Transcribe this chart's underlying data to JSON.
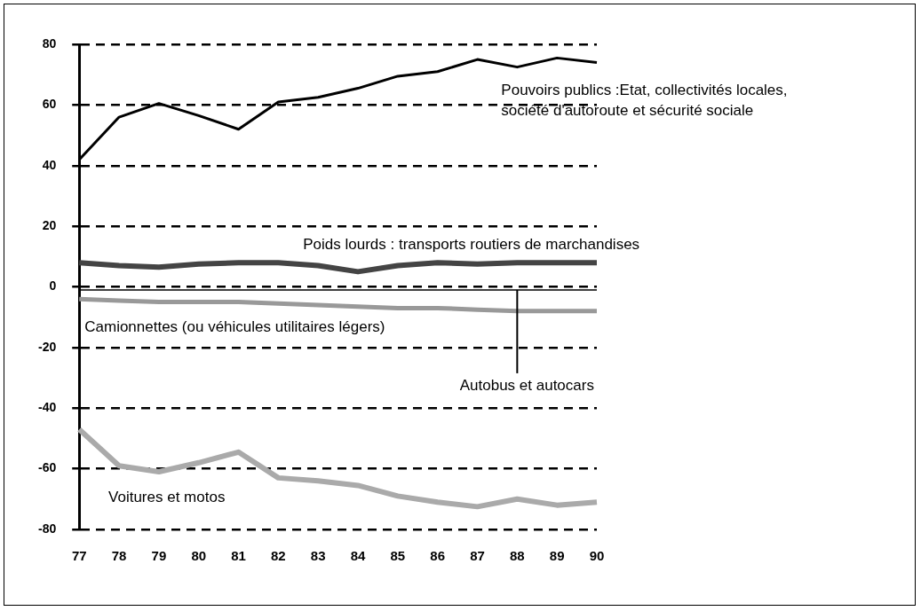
{
  "chart_data": {
    "type": "line",
    "categories": [
      "77",
      "78",
      "79",
      "80",
      "81",
      "82",
      "83",
      "84",
      "85",
      "86",
      "87",
      "88",
      "89",
      "90"
    ],
    "series": [
      {
        "name": "Pouvoirs publics :Etat, collectivités locales, société d'autoroute et sécurité sociale",
        "color": "#000000",
        "values": [
          42,
          56,
          60.5,
          56.5,
          52,
          61,
          62.5,
          65.5,
          69.5,
          71,
          75,
          72.5,
          75.5,
          74
        ]
      },
      {
        "name": "Poids lourds : transports routiers de marchandises",
        "color": "#444444",
        "values": [
          8,
          7,
          6.5,
          7.5,
          8,
          8,
          7,
          5,
          7,
          8,
          7.5,
          8,
          8,
          8
        ]
      },
      {
        "name": "Autobus et autocars",
        "color": "#000000",
        "values": [
          -1,
          -1,
          -1,
          -1,
          -1,
          -1,
          -1,
          -1,
          -1,
          -1,
          -1,
          -1,
          -1,
          -1
        ]
      },
      {
        "name": "Camionnettes (ou véhicules utilitaires légers)",
        "color": "#999999",
        "values": [
          -4,
          -4.5,
          -5,
          -5,
          -5,
          -5.5,
          -6,
          -6.5,
          -7,
          -7,
          -7.5,
          -8,
          -8,
          -8
        ]
      },
      {
        "name": "Voitures et motos",
        "color": "#aaaaaa",
        "values": [
          -47,
          -59,
          -61,
          -58,
          -54.5,
          -63,
          -64,
          -65.5,
          -69,
          -71,
          -72.5,
          -70,
          -72,
          -71
        ]
      }
    ],
    "ylim": [
      -80,
      80
    ],
    "yticks": [
      -80,
      -60,
      -40,
      -20,
      0,
      20,
      40,
      60,
      80
    ],
    "grid": "y",
    "line_style": "solid",
    "legend": false
  }
}
